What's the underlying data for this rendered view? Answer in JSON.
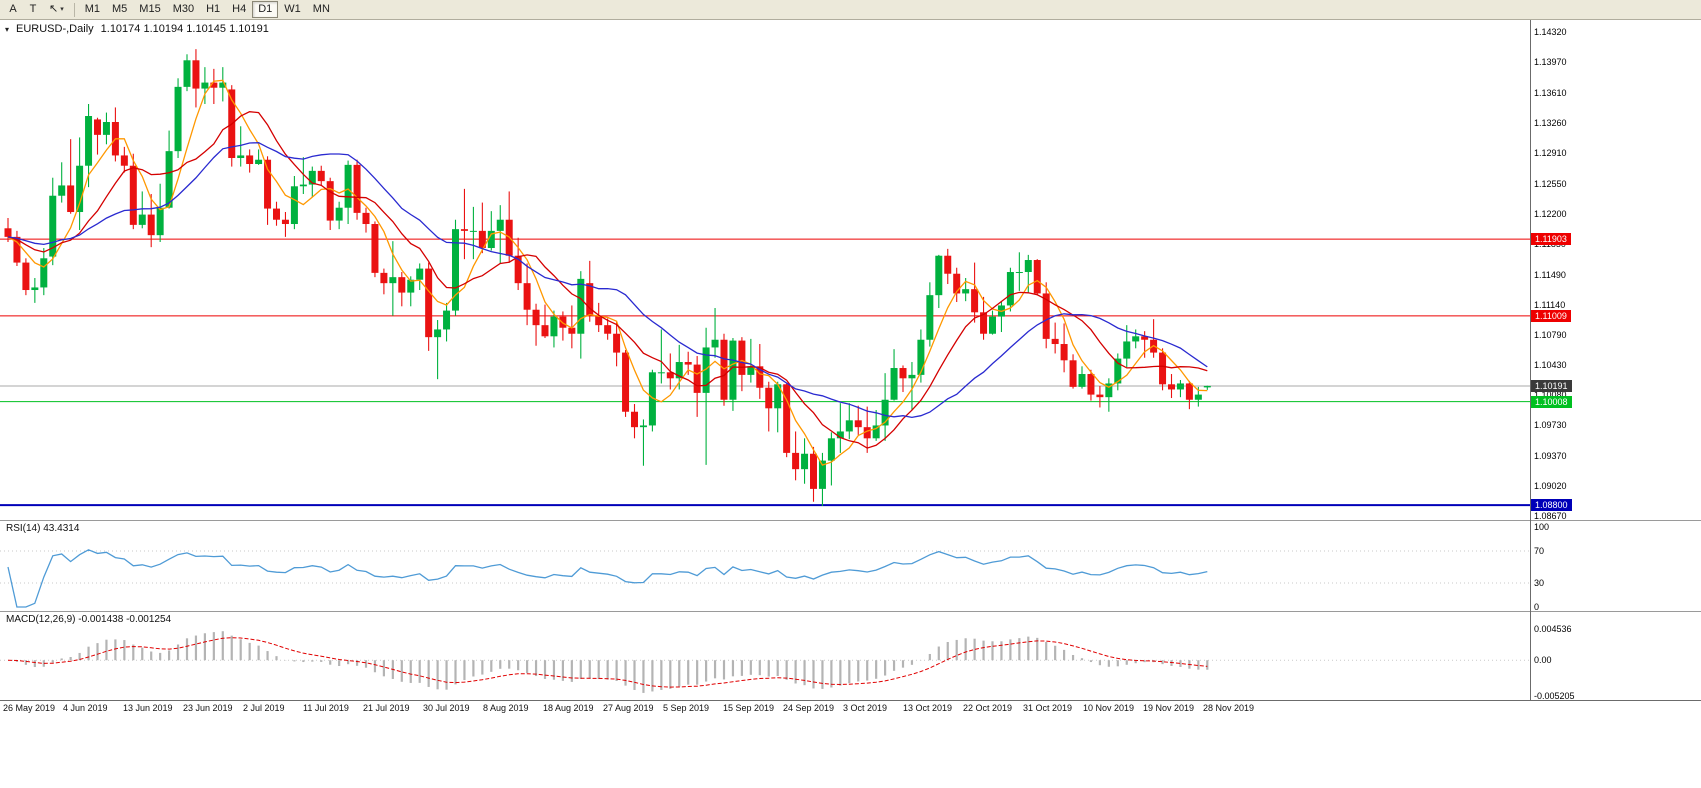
{
  "toolbar": {
    "tools": [
      {
        "name": "arrow-tool",
        "glyph": "A",
        "dropdown": false
      },
      {
        "name": "text-tool",
        "glyph": "T",
        "dropdown": false
      },
      {
        "name": "drawing-tools",
        "glyph": "↖",
        "dropdown": true
      }
    ],
    "dropdown_caret": "▾",
    "timeframes": [
      {
        "label": "M1",
        "active": false
      },
      {
        "label": "M5",
        "active": false
      },
      {
        "label": "M15",
        "active": false
      },
      {
        "label": "M30",
        "active": false
      },
      {
        "label": "H1",
        "active": false
      },
      {
        "label": "H4",
        "active": false
      },
      {
        "label": "D1",
        "active": true
      },
      {
        "label": "W1",
        "active": false
      },
      {
        "label": "MN",
        "active": false
      }
    ]
  },
  "chart": {
    "menu_icon": "▾",
    "title": "EURUSD-,Daily",
    "ohlc_text": "1.10174 1.10194 1.10145 1.10191"
  },
  "chart_data": {
    "type": "candlestick",
    "symbol": "EURUSD-",
    "timeframe": "Daily",
    "current": {
      "open": 1.10174,
      "high": 1.10194,
      "low": 1.10145,
      "close": 1.10191
    },
    "colors": {
      "bull": "#00b13f",
      "bear": "#ea1212",
      "background": "#ffffff",
      "ma_fast": "#ff9800",
      "ma_mid": "#d40000",
      "ma_slow": "#2a2ad0",
      "separator": "#9a9a9a",
      "axis_line": "#6b6b6b"
    },
    "price_axis": {
      "labels": [
        "1.14320",
        "1.13970",
        "1.13610",
        "1.13260",
        "1.12910",
        "1.12550",
        "1.12200",
        "1.11850",
        "1.11490",
        "1.11140",
        "1.10790",
        "1.10430",
        "1.10080",
        "1.09730",
        "1.09370",
        "1.09020",
        "1.08670"
      ]
    },
    "x_labels": [
      "26 May 2019",
      "4 Jun 2019",
      "13 Jun 2019",
      "23 Jun 2019",
      "2 Jul 2019",
      "11 Jul 2019",
      "21 Jul 2019",
      "30 Jul 2019",
      "8 Aug 2019",
      "18 Aug 2019",
      "27 Aug 2019",
      "5 Sep 2019",
      "15 Sep 2019",
      "24 Sep 2019",
      "3 Oct 2019",
      "13 Oct 2019",
      "22 Oct 2019",
      "31 Oct 2019",
      "10 Nov 2019",
      "19 Nov 2019",
      "28 Nov 2019"
    ],
    "candles": [
      [
        1.1203,
        1.1215,
        1.1187,
        1.1193
      ],
      [
        1.1193,
        1.12,
        1.1159,
        1.1163
      ],
      [
        1.1163,
        1.1168,
        1.1125,
        1.1131
      ],
      [
        1.1131,
        1.1145,
        1.1116,
        1.1134
      ],
      [
        1.1134,
        1.118,
        1.1125,
        1.1168
      ],
      [
        1.117,
        1.1262,
        1.116,
        1.1241
      ],
      [
        1.1241,
        1.128,
        1.1233,
        1.1253
      ],
      [
        1.1253,
        1.1307,
        1.122,
        1.1222
      ],
      [
        1.1222,
        1.1309,
        1.1201,
        1.1276
      ],
      [
        1.1276,
        1.1348,
        1.1251,
        1.1334
      ],
      [
        1.133,
        1.1332,
        1.1289,
        1.1312
      ],
      [
        1.1312,
        1.1338,
        1.1301,
        1.1327
      ],
      [
        1.1327,
        1.1344,
        1.1281,
        1.1288
      ],
      [
        1.1288,
        1.1298,
        1.1268,
        1.1276
      ],
      [
        1.1276,
        1.129,
        1.1202,
        1.1207
      ],
      [
        1.1207,
        1.1246,
        1.1203,
        1.1219
      ],
      [
        1.1219,
        1.1243,
        1.1181,
        1.1195
      ],
      [
        1.1195,
        1.1255,
        1.1187,
        1.1227
      ],
      [
        1.1227,
        1.1317,
        1.1226,
        1.1293
      ],
      [
        1.1293,
        1.1378,
        1.1285,
        1.1368
      ],
      [
        1.1368,
        1.1406,
        1.1363,
        1.1399
      ],
      [
        1.1399,
        1.1412,
        1.1344,
        1.1366
      ],
      [
        1.1366,
        1.1391,
        1.1348,
        1.1373
      ],
      [
        1.1373,
        1.1389,
        1.1348,
        1.1367
      ],
      [
        1.1367,
        1.1391,
        1.1351,
        1.1373
      ],
      [
        1.1365,
        1.137,
        1.1275,
        1.1285
      ],
      [
        1.1285,
        1.1322,
        1.1275,
        1.1288
      ],
      [
        1.1288,
        1.1295,
        1.1268,
        1.1278
      ],
      [
        1.1278,
        1.1295,
        1.1277,
        1.1283
      ],
      [
        1.1283,
        1.1287,
        1.1207,
        1.1226
      ],
      [
        1.1226,
        1.1234,
        1.1206,
        1.1213
      ],
      [
        1.1213,
        1.1222,
        1.1193,
        1.1208
      ],
      [
        1.1208,
        1.1264,
        1.1202,
        1.1252
      ],
      [
        1.1252,
        1.1286,
        1.1243,
        1.1254
      ],
      [
        1.1254,
        1.1275,
        1.1239,
        1.127
      ],
      [
        1.127,
        1.1276,
        1.1253,
        1.1258
      ],
      [
        1.1258,
        1.1262,
        1.1201,
        1.1212
      ],
      [
        1.1212,
        1.1234,
        1.1202,
        1.1227
      ],
      [
        1.1227,
        1.1282,
        1.1208,
        1.1277
      ],
      [
        1.1277,
        1.1283,
        1.1213,
        1.1221
      ],
      [
        1.1221,
        1.1227,
        1.1198,
        1.1208
      ],
      [
        1.1208,
        1.1211,
        1.1146,
        1.1151
      ],
      [
        1.1151,
        1.1156,
        1.1126,
        1.1139
      ],
      [
        1.1139,
        1.1188,
        1.1101,
        1.1146
      ],
      [
        1.1146,
        1.1152,
        1.1112,
        1.1128
      ],
      [
        1.1128,
        1.1147,
        1.1112,
        1.1143
      ],
      [
        1.1143,
        1.1162,
        1.1131,
        1.1156
      ],
      [
        1.1156,
        1.1163,
        1.106,
        1.1076
      ],
      [
        1.1076,
        1.1096,
        1.1027,
        1.1085
      ],
      [
        1.1085,
        1.1116,
        1.1071,
        1.1107
      ],
      [
        1.1107,
        1.1213,
        1.1101,
        1.1202
      ],
      [
        1.1202,
        1.1249,
        1.1167,
        1.12
      ],
      [
        1.12,
        1.1228,
        1.1167,
        1.12
      ],
      [
        1.12,
        1.1233,
        1.1174,
        1.118
      ],
      [
        1.118,
        1.1223,
        1.1177,
        1.12
      ],
      [
        1.12,
        1.123,
        1.1162,
        1.1213
      ],
      [
        1.1213,
        1.1246,
        1.1163,
        1.1171
      ],
      [
        1.1171,
        1.1192,
        1.1131,
        1.1139
      ],
      [
        1.1139,
        1.1162,
        1.109,
        1.1108
      ],
      [
        1.1108,
        1.1115,
        1.1066,
        1.109
      ],
      [
        1.109,
        1.1114,
        1.1075,
        1.1077
      ],
      [
        1.1077,
        1.1107,
        1.1064,
        1.11
      ],
      [
        1.11,
        1.1106,
        1.1072,
        1.1087
      ],
      [
        1.1087,
        1.1113,
        1.1063,
        1.108
      ],
      [
        1.108,
        1.1153,
        1.1051,
        1.1144
      ],
      [
        1.1139,
        1.1165,
        1.1094,
        1.1101
      ],
      [
        1.1101,
        1.1116,
        1.1082,
        1.109
      ],
      [
        1.109,
        1.1098,
        1.1073,
        1.108
      ],
      [
        1.108,
        1.1094,
        1.1042,
        1.1058
      ],
      [
        1.1058,
        1.1061,
        1.0983,
        1.0989
      ],
      [
        1.0989,
        1.0998,
        1.0958,
        1.0971
      ],
      [
        1.0971,
        1.098,
        1.0926,
        1.0973
      ],
      [
        1.0973,
        1.1038,
        1.0966,
        1.1035
      ],
      [
        1.1035,
        1.1085,
        1.1022,
        1.1035
      ],
      [
        1.1035,
        1.1057,
        1.1015,
        1.1028
      ],
      [
        1.1028,
        1.1067,
        1.1015,
        1.1047
      ],
      [
        1.1047,
        1.1059,
        1.1032,
        1.1044
      ],
      [
        1.1044,
        1.1054,
        1.0983,
        1.1011
      ],
      [
        1.1011,
        1.1087,
        1.0927,
        1.1064
      ],
      [
        1.1064,
        1.111,
        1.1052,
        1.1073
      ],
      [
        1.1073,
        1.108,
        1.0996,
        1.1003
      ],
      [
        1.1003,
        1.1075,
        1.099,
        1.1072
      ],
      [
        1.1072,
        1.1076,
        1.1013,
        1.1032
      ],
      [
        1.1032,
        1.1074,
        1.1023,
        1.1042
      ],
      [
        1.1042,
        1.1068,
        1.1004,
        1.1017
      ],
      [
        1.1017,
        1.1024,
        1.0966,
        1.0993
      ],
      [
        1.0993,
        1.1024,
        1.0965,
        1.1021
      ],
      [
        1.1021,
        1.1023,
        1.0936,
        1.0941
      ],
      [
        1.0941,
        1.0966,
        1.0909,
        1.0922
      ],
      [
        1.0922,
        1.0958,
        1.0905,
        1.094
      ],
      [
        1.094,
        1.0948,
        1.0884,
        1.0899
      ],
      [
        1.0899,
        1.0941,
        1.0879,
        1.0932
      ],
      [
        1.0932,
        1.0965,
        1.0903,
        1.0958
      ],
      [
        1.0958,
        1.0999,
        1.0941,
        1.0966
      ],
      [
        1.0966,
        1.0999,
        1.0957,
        1.0979
      ],
      [
        1.0979,
        1.0996,
        1.0962,
        1.0971
      ],
      [
        1.0971,
        1.0995,
        1.0941,
        1.0958
      ],
      [
        1.0958,
        1.0991,
        1.0955,
        1.0973
      ],
      [
        1.0973,
        1.1034,
        1.0955,
        1.1003
      ],
      [
        1.1003,
        1.1062,
        1.1002,
        1.104
      ],
      [
        1.104,
        1.1043,
        1.1012,
        1.1028
      ],
      [
        1.1028,
        1.1047,
        1.0991,
        1.1032
      ],
      [
        1.1032,
        1.1085,
        1.1023,
        1.1073
      ],
      [
        1.1073,
        1.114,
        1.1065,
        1.1125
      ],
      [
        1.1125,
        1.1172,
        1.111,
        1.1171
      ],
      [
        1.1171,
        1.1179,
        1.1138,
        1.115
      ],
      [
        1.115,
        1.1157,
        1.1117,
        1.1127
      ],
      [
        1.1127,
        1.1145,
        1.1118,
        1.1132
      ],
      [
        1.1132,
        1.1163,
        1.1093,
        1.1105
      ],
      [
        1.1105,
        1.1123,
        1.1073,
        1.108
      ],
      [
        1.108,
        1.1107,
        1.1079,
        1.11
      ],
      [
        1.11,
        1.1118,
        1.1082,
        1.1113
      ],
      [
        1.1113,
        1.1157,
        1.1106,
        1.1152
      ],
      [
        1.1152,
        1.1175,
        1.113,
        1.1152
      ],
      [
        1.1152,
        1.1172,
        1.1128,
        1.1166
      ],
      [
        1.1166,
        1.1167,
        1.1125,
        1.1127
      ],
      [
        1.1127,
        1.114,
        1.1063,
        1.1074
      ],
      [
        1.1074,
        1.1093,
        1.1057,
        1.1068
      ],
      [
        1.1068,
        1.1092,
        1.1035,
        1.1049
      ],
      [
        1.1049,
        1.1056,
        1.1016,
        1.1018
      ],
      [
        1.1018,
        1.1042,
        1.1016,
        1.1033
      ],
      [
        1.1033,
        1.1038,
        1.1002,
        1.1009
      ],
      [
        1.1009,
        1.1019,
        1.0994,
        1.1006
      ],
      [
        1.1006,
        1.1028,
        1.0989,
        1.1022
      ],
      [
        1.1022,
        1.1057,
        1.1014,
        1.1051
      ],
      [
        1.1051,
        1.109,
        1.1041,
        1.1071
      ],
      [
        1.1071,
        1.1085,
        1.1063,
        1.1077
      ],
      [
        1.1077,
        1.1083,
        1.1052,
        1.1073
      ],
      [
        1.1073,
        1.1097,
        1.1052,
        1.1058
      ],
      [
        1.1058,
        1.1063,
        1.1014,
        1.1021
      ],
      [
        1.1021,
        1.1033,
        1.1005,
        1.1015
      ],
      [
        1.1015,
        1.1026,
        1.1006,
        1.1022
      ],
      [
        1.1022,
        1.1025,
        1.0992,
        1.1003
      ],
      [
        1.1003,
        1.1018,
        1.0995,
        1.1009
      ],
      [
        1.10174,
        1.10194,
        1.10145,
        1.10191
      ]
    ],
    "moving_averages": [
      {
        "name": "ma-fast",
        "period": 5,
        "color": "#ff9800"
      },
      {
        "name": "ma-medium",
        "period": 10,
        "color": "#d40000"
      },
      {
        "name": "ma-slow",
        "period": 20,
        "color": "#2a2ad0"
      }
    ],
    "horizontal_levels": [
      {
        "label": "1.11903",
        "price": 1.11903,
        "color": "#ee0000",
        "thickness": 1
      },
      {
        "label": "1.11009",
        "price": 1.11009,
        "color": "#ee0000",
        "thickness": 1
      },
      {
        "label": "1.10008",
        "price": 1.10008,
        "color": "#00c020",
        "thickness": 1
      },
      {
        "label": "1.08800",
        "price": 1.088,
        "color": "#0000b8",
        "thickness": 2
      }
    ],
    "bid_line": {
      "price": 1.10191,
      "label": "1.10191",
      "line_color": "#a8a8a8",
      "tag_bg": "#3a3a3a"
    },
    "rsi": {
      "label": "RSI(14) 43.4314",
      "period": 14,
      "value": 43.4314,
      "color": "#4f9bd6",
      "scale": [
        {
          "label": "100",
          "value": 100
        },
        {
          "label": "70",
          "value": 70
        },
        {
          "label": "30",
          "value": 30
        },
        {
          "label": "0",
          "value": 0
        }
      ],
      "levels": [
        70,
        30
      ]
    },
    "macd": {
      "label": "MACD(12,26,9) -0.001438 -0.001254",
      "fast": 12,
      "slow": 26,
      "signal_period": 9,
      "macd_value": -0.001438,
      "signal_value": -0.001254,
      "hist_color": "#b4b4b4",
      "signal_color": "#e00000",
      "scale": [
        {
          "label": "0.004536",
          "value": 0.004536
        },
        {
          "label": "0.00",
          "value": 0
        },
        {
          "label": "-0.005205",
          "value": -0.005205
        }
      ]
    }
  }
}
